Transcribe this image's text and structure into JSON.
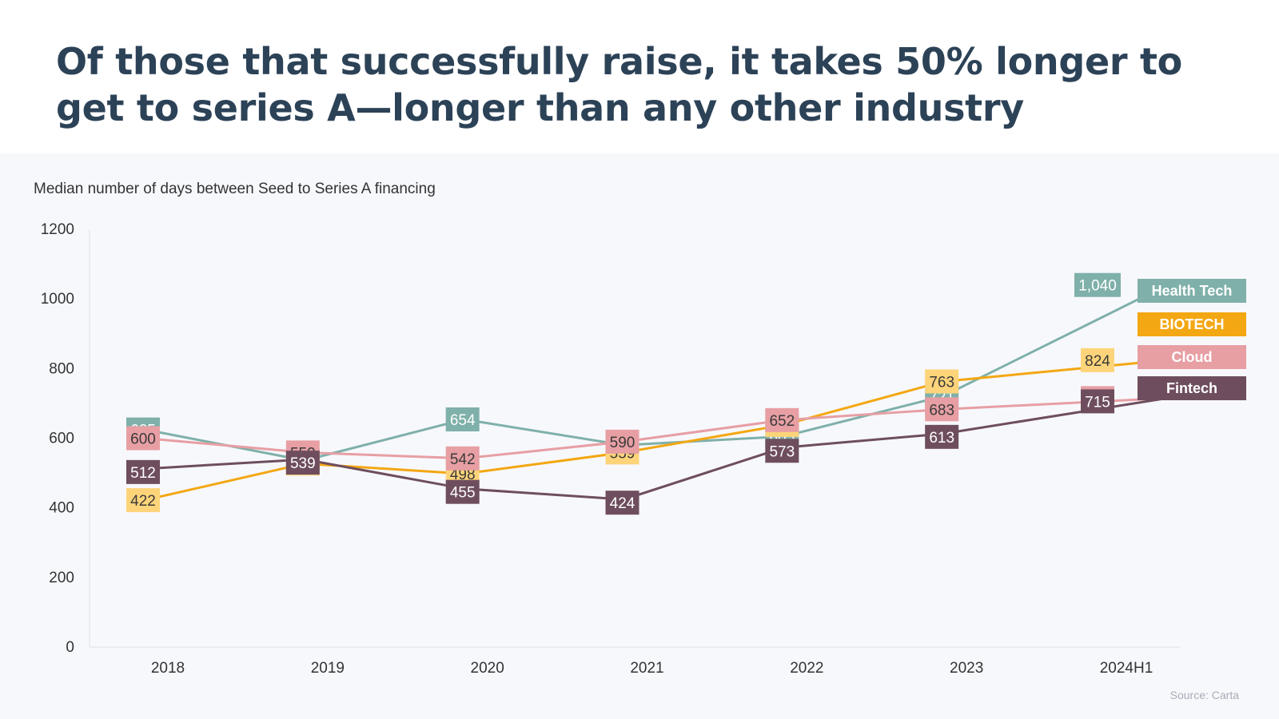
{
  "title": "Of those that successfully raise, it takes 50% longer to get to series A—longer than any other industry",
  "source": "Source: Carta",
  "chart_data": {
    "type": "line",
    "title": "Median number of days between Seed to Series A financing",
    "xlabel": "",
    "ylabel": "",
    "ylim": [
      0,
      1200
    ],
    "yticks": [
      0,
      200,
      400,
      600,
      800,
      1000,
      1200
    ],
    "categories": [
      "2018",
      "2019",
      "2020",
      "2021",
      "2022",
      "2023",
      "2024H1"
    ],
    "legend_position": "right",
    "grid": false,
    "series": [
      {
        "name": "Health Tech",
        "color": "#7fb0aa",
        "values": [
          625,
          536,
          654,
          580,
          605,
          721,
          1040
        ],
        "labels": [
          "625",
          "536",
          "654",
          "580",
          "605",
          "721",
          "1,040"
        ]
      },
      {
        "name": "BIOTECH",
        "color": "#f3a712",
        "label_color": "#fdd47a",
        "values": [
          422,
          527,
          498,
          559,
          638,
          763,
          824
        ],
        "labels": [
          "422",
          "527",
          "498",
          "559",
          "638",
          "763",
          "824"
        ]
      },
      {
        "name": "Cloud",
        "color": "#e79fa4",
        "values": [
          600,
          559,
          542,
          590,
          652,
          683,
          715
        ],
        "labels": [
          "600",
          "559",
          "542",
          "590",
          "652",
          "683",
          "715"
        ]
      },
      {
        "name": "Fintech",
        "color": "#6e4e5e",
        "values": [
          512,
          539,
          455,
          424,
          573,
          613,
          715
        ],
        "labels": [
          "512",
          "539",
          "455",
          "424",
          "573",
          "613",
          "715"
        ]
      }
    ]
  }
}
